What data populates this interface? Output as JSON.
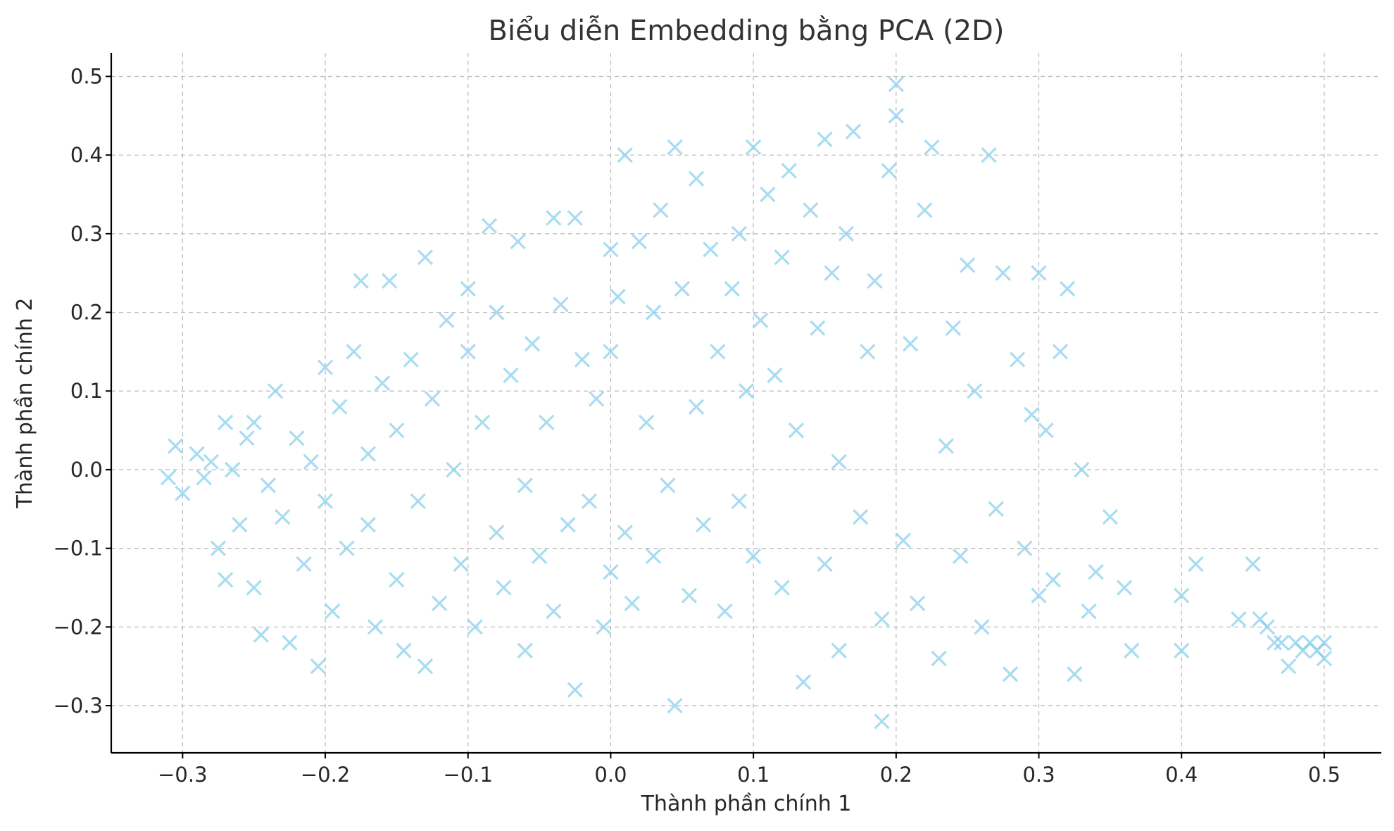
{
  "chart_data": {
    "type": "scatter",
    "title": "Biểu diễn Embedding bằng PCA (2D)",
    "xlabel": "Thành phần chính 1",
    "ylabel": "Thành phần chính 2",
    "xlim": [
      -0.35,
      0.54
    ],
    "ylim": [
      -0.36,
      0.53
    ],
    "xticks": [
      -0.3,
      -0.2,
      -0.1,
      0.0,
      0.1,
      0.2,
      0.3,
      0.4,
      0.5
    ],
    "yticks": [
      -0.3,
      -0.2,
      -0.1,
      0.0,
      0.1,
      0.2,
      0.3,
      0.4,
      0.5
    ],
    "xtick_labels": [
      "−0.3",
      "−0.2",
      "−0.1",
      "0.0",
      "0.1",
      "0.2",
      "0.3",
      "0.4",
      "0.5"
    ],
    "ytick_labels": [
      "−0.3",
      "−0.2",
      "−0.1",
      "0.0",
      "0.1",
      "0.2",
      "0.3",
      "0.4",
      "0.5"
    ],
    "grid": true,
    "marker": "x",
    "color": "#87ceeb",
    "series": [
      {
        "points": [
          [
            -0.31,
            -0.01
          ],
          [
            -0.305,
            0.03
          ],
          [
            -0.3,
            -0.03
          ],
          [
            -0.29,
            0.02
          ],
          [
            -0.285,
            -0.01
          ],
          [
            -0.28,
            0.01
          ],
          [
            -0.275,
            -0.1
          ],
          [
            -0.27,
            0.06
          ],
          [
            -0.27,
            -0.14
          ],
          [
            -0.265,
            0.0
          ],
          [
            -0.26,
            -0.07
          ],
          [
            -0.255,
            0.04
          ],
          [
            -0.25,
            -0.15
          ],
          [
            -0.25,
            0.06
          ],
          [
            -0.245,
            -0.21
          ],
          [
            -0.24,
            -0.02
          ],
          [
            -0.235,
            0.1
          ],
          [
            -0.23,
            -0.06
          ],
          [
            -0.225,
            -0.22
          ],
          [
            -0.22,
            0.04
          ],
          [
            -0.215,
            -0.12
          ],
          [
            -0.21,
            0.01
          ],
          [
            -0.205,
            -0.25
          ],
          [
            -0.2,
            0.13
          ],
          [
            -0.2,
            -0.04
          ],
          [
            -0.195,
            -0.18
          ],
          [
            -0.19,
            0.08
          ],
          [
            -0.185,
            -0.1
          ],
          [
            -0.18,
            0.15
          ],
          [
            -0.175,
            0.24
          ],
          [
            -0.17,
            -0.07
          ],
          [
            -0.17,
            0.02
          ],
          [
            -0.165,
            -0.2
          ],
          [
            -0.16,
            0.11
          ],
          [
            -0.155,
            0.24
          ],
          [
            -0.15,
            -0.14
          ],
          [
            -0.15,
            0.05
          ],
          [
            -0.145,
            -0.23
          ],
          [
            -0.14,
            0.14
          ],
          [
            -0.135,
            -0.04
          ],
          [
            -0.13,
            0.27
          ],
          [
            -0.13,
            -0.25
          ],
          [
            -0.125,
            0.09
          ],
          [
            -0.12,
            -0.17
          ],
          [
            -0.115,
            0.19
          ],
          [
            -0.11,
            0.0
          ],
          [
            -0.105,
            -0.12
          ],
          [
            -0.1,
            0.23
          ],
          [
            -0.1,
            0.15
          ],
          [
            -0.095,
            -0.2
          ],
          [
            -0.09,
            0.06
          ],
          [
            -0.085,
            0.31
          ],
          [
            -0.08,
            -0.08
          ],
          [
            -0.08,
            0.2
          ],
          [
            -0.075,
            -0.15
          ],
          [
            -0.07,
            0.12
          ],
          [
            -0.065,
            0.29
          ],
          [
            -0.06,
            -0.02
          ],
          [
            -0.06,
            -0.23
          ],
          [
            -0.055,
            0.16
          ],
          [
            -0.05,
            -0.11
          ],
          [
            -0.045,
            0.06
          ],
          [
            -0.04,
            0.32
          ],
          [
            -0.04,
            -0.18
          ],
          [
            -0.035,
            0.21
          ],
          [
            -0.03,
            -0.07
          ],
          [
            -0.025,
            0.32
          ],
          [
            -0.025,
            -0.28
          ],
          [
            -0.02,
            0.14
          ],
          [
            -0.015,
            -0.04
          ],
          [
            -0.01,
            0.09
          ],
          [
            -0.005,
            -0.2
          ],
          [
            0.0,
            0.28
          ],
          [
            0.0,
            0.15
          ],
          [
            0.0,
            -0.13
          ],
          [
            0.005,
            0.22
          ],
          [
            0.01,
            0.4
          ],
          [
            0.01,
            -0.08
          ],
          [
            0.015,
            -0.17
          ],
          [
            0.02,
            0.29
          ],
          [
            0.025,
            0.06
          ],
          [
            0.03,
            -0.11
          ],
          [
            0.03,
            0.2
          ],
          [
            0.035,
            0.33
          ],
          [
            0.04,
            -0.02
          ],
          [
            0.045,
            0.41
          ],
          [
            0.045,
            -0.3
          ],
          [
            0.05,
            0.23
          ],
          [
            0.055,
            -0.16
          ],
          [
            0.06,
            0.37
          ],
          [
            0.06,
            0.08
          ],
          [
            0.065,
            -0.07
          ],
          [
            0.07,
            0.28
          ],
          [
            0.075,
            0.15
          ],
          [
            0.08,
            -0.18
          ],
          [
            0.085,
            0.23
          ],
          [
            0.09,
            0.3
          ],
          [
            0.09,
            -0.04
          ],
          [
            0.095,
            0.1
          ],
          [
            0.1,
            0.41
          ],
          [
            0.1,
            -0.11
          ],
          [
            0.105,
            0.19
          ],
          [
            0.11,
            0.35
          ],
          [
            0.115,
            0.12
          ],
          [
            0.12,
            -0.15
          ],
          [
            0.12,
            0.27
          ],
          [
            0.125,
            0.38
          ],
          [
            0.13,
            0.05
          ],
          [
            0.135,
            -0.27
          ],
          [
            0.14,
            0.33
          ],
          [
            0.145,
            0.18
          ],
          [
            0.15,
            0.42
          ],
          [
            0.15,
            -0.12
          ],
          [
            0.155,
            0.25
          ],
          [
            0.16,
            0.01
          ],
          [
            0.16,
            -0.23
          ],
          [
            0.165,
            0.3
          ],
          [
            0.17,
            0.43
          ],
          [
            0.175,
            -0.06
          ],
          [
            0.18,
            0.15
          ],
          [
            0.185,
            0.24
          ],
          [
            0.19,
            -0.32
          ],
          [
            0.19,
            -0.19
          ],
          [
            0.195,
            0.38
          ],
          [
            0.2,
            0.49
          ],
          [
            0.2,
            0.45
          ],
          [
            0.205,
            -0.09
          ],
          [
            0.21,
            0.16
          ],
          [
            0.215,
            -0.17
          ],
          [
            0.22,
            0.33
          ],
          [
            0.225,
            0.41
          ],
          [
            0.23,
            -0.24
          ],
          [
            0.235,
            0.03
          ],
          [
            0.24,
            0.18
          ],
          [
            0.245,
            -0.11
          ],
          [
            0.25,
            0.26
          ],
          [
            0.255,
            0.1
          ],
          [
            0.26,
            -0.2
          ],
          [
            0.265,
            0.4
          ],
          [
            0.27,
            -0.05
          ],
          [
            0.275,
            0.25
          ],
          [
            0.28,
            -0.26
          ],
          [
            0.285,
            0.14
          ],
          [
            0.29,
            -0.1
          ],
          [
            0.295,
            0.07
          ],
          [
            0.3,
            0.25
          ],
          [
            0.3,
            -0.16
          ],
          [
            0.305,
            0.05
          ],
          [
            0.31,
            -0.14
          ],
          [
            0.315,
            0.15
          ],
          [
            0.32,
            0.23
          ],
          [
            0.325,
            -0.26
          ],
          [
            0.33,
            0.0
          ],
          [
            0.335,
            -0.18
          ],
          [
            0.34,
            -0.13
          ],
          [
            0.35,
            -0.06
          ],
          [
            0.36,
            -0.15
          ],
          [
            0.365,
            -0.23
          ],
          [
            0.4,
            -0.16
          ],
          [
            0.4,
            -0.23
          ],
          [
            0.41,
            -0.12
          ],
          [
            0.44,
            -0.19
          ],
          [
            0.45,
            -0.12
          ],
          [
            0.455,
            -0.19
          ],
          [
            0.46,
            -0.2
          ],
          [
            0.465,
            -0.22
          ],
          [
            0.47,
            -0.22
          ],
          [
            0.475,
            -0.25
          ],
          [
            0.48,
            -0.22
          ],
          [
            0.485,
            -0.23
          ],
          [
            0.49,
            -0.22
          ],
          [
            0.495,
            -0.23
          ],
          [
            0.5,
            -0.22
          ],
          [
            0.5,
            -0.24
          ]
        ]
      }
    ]
  }
}
